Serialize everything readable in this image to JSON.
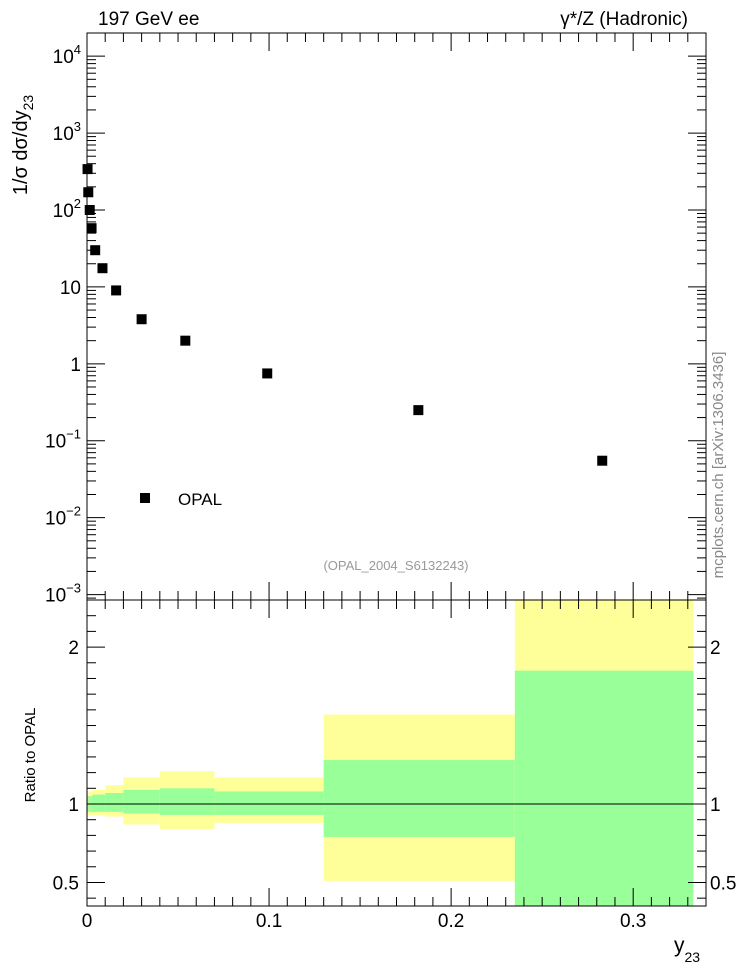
{
  "header": {
    "left": "197 GeV ee",
    "right": "γ*/Z (Hadronic)"
  },
  "side_label": "mcplots.cern.ch [arXiv:1306.3436]",
  "analysis_label": "(OPAL_2004_S6132243)",
  "chart_data": [
    {
      "type": "scatter",
      "title": "",
      "ylabel": "1/σ dσ/dy",
      "ylabel_sub": "23",
      "yscale": "log",
      "ylim": [
        0.00085,
        20000
      ],
      "xlim": [
        0,
        0.34
      ],
      "y_ticks": [
        {
          "value": 0.001,
          "base": "10",
          "exp": "−3"
        },
        {
          "value": 0.01,
          "base": "10",
          "exp": "−2"
        },
        {
          "value": 0.1,
          "base": "10",
          "exp": "−1"
        },
        {
          "value": 1,
          "base": "1",
          "exp": ""
        },
        {
          "value": 10,
          "base": "10",
          "exp": ""
        },
        {
          "value": 100,
          "base": "10",
          "exp": "2"
        },
        {
          "value": 1000,
          "base": "10",
          "exp": "3"
        },
        {
          "value": 10000,
          "base": "10",
          "exp": "4"
        }
      ],
      "legend": {
        "entries": [
          "OPAL"
        ],
        "position": "bottom-left"
      },
      "series": [
        {
          "name": "OPAL",
          "points": [
            {
              "x": 0.0003,
              "y": 340
            },
            {
              "x": 0.0007,
              "y": 170
            },
            {
              "x": 0.0015,
              "y": 100
            },
            {
              "x": 0.0025,
              "y": 58
            },
            {
              "x": 0.0045,
              "y": 30
            },
            {
              "x": 0.0085,
              "y": 17.5
            },
            {
              "x": 0.016,
              "y": 9
            },
            {
              "x": 0.03,
              "y": 3.8
            },
            {
              "x": 0.054,
              "y": 2.0
            },
            {
              "x": 0.099,
              "y": 0.75
            },
            {
              "x": 0.182,
              "y": 0.25
            },
            {
              "x": 0.283,
              "y": 0.055
            }
          ]
        }
      ]
    },
    {
      "type": "area",
      "title": "",
      "ylabel": "Ratio to OPAL",
      "xlabel": "y",
      "xlabel_sub": "23",
      "xlim": [
        0,
        0.34
      ],
      "ylim": [
        0.35,
        2.3
      ],
      "x_ticks": [
        "0",
        "0.1",
        "0.2",
        "0.3"
      ],
      "x_tick_values": [
        0,
        0.1,
        0.2,
        0.3
      ],
      "y_ticks": [
        "0.5",
        "1",
        "2"
      ],
      "y_tick_values": [
        0.5,
        1,
        2
      ],
      "reference_line": 1,
      "colors": {
        "outer_band": "#ffff99",
        "inner_band": "#99ff99"
      },
      "bins": [
        {
          "xlo": 0.0,
          "xhi": 0.001,
          "outer": [
            0.93,
            1.08
          ],
          "inner": [
            0.95,
            1.05
          ]
        },
        {
          "xlo": 0.001,
          "xhi": 0.002,
          "outer": [
            0.93,
            1.08
          ],
          "inner": [
            0.95,
            1.05
          ]
        },
        {
          "xlo": 0.002,
          "xhi": 0.003,
          "outer": [
            0.93,
            1.08
          ],
          "inner": [
            0.95,
            1.05
          ]
        },
        {
          "xlo": 0.003,
          "xhi": 0.006,
          "outer": [
            0.93,
            1.09
          ],
          "inner": [
            0.95,
            1.06
          ]
        },
        {
          "xlo": 0.006,
          "xhi": 0.01,
          "outer": [
            0.93,
            1.09
          ],
          "inner": [
            0.95,
            1.06
          ]
        },
        {
          "xlo": 0.01,
          "xhi": 0.02,
          "outer": [
            0.92,
            1.12
          ],
          "inner": [
            0.95,
            1.07
          ]
        },
        {
          "xlo": 0.02,
          "xhi": 0.04,
          "outer": [
            0.87,
            1.17
          ],
          "inner": [
            0.94,
            1.09
          ]
        },
        {
          "xlo": 0.04,
          "xhi": 0.07,
          "outer": [
            0.84,
            1.21
          ],
          "inner": [
            0.93,
            1.1
          ]
        },
        {
          "xlo": 0.07,
          "xhi": 0.13,
          "outer": [
            0.88,
            1.17
          ],
          "inner": [
            0.93,
            1.08
          ]
        },
        {
          "xlo": 0.13,
          "xhi": 0.235,
          "outer": [
            0.51,
            1.57
          ],
          "inner": [
            0.79,
            1.28
          ]
        },
        {
          "xlo": 0.235,
          "xhi": 0.333,
          "outer": [
            0.35,
            2.3
          ],
          "inner": [
            0.35,
            1.85
          ]
        }
      ]
    }
  ]
}
